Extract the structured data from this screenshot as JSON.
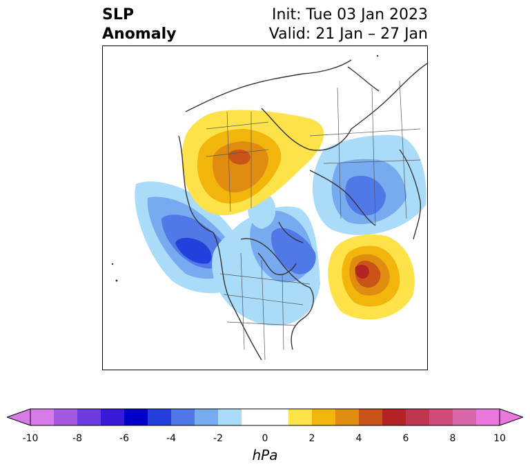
{
  "title": {
    "left_line1": "SLP",
    "left_line2": "Anomaly",
    "right_line1": "Init: Tue 03 Jan 2023",
    "right_line2": "Valid: 21 Jan – 27 Jan"
  },
  "colorbar": {
    "label": "hPa",
    "ticks": [
      "-10",
      "-8",
      "-6",
      "-4",
      "-2",
      "0",
      "2",
      "4",
      "6",
      "8",
      "10"
    ],
    "min": -10,
    "max": 10,
    "colors": [
      "#d67be8",
      "#a558e0",
      "#6e3be0",
      "#3a1ad8",
      "#0000c8",
      "#2340dc",
      "#5078e6",
      "#78aaf0",
      "#aadcfa",
      "#ffffff",
      "#ffffff",
      "#fde24a",
      "#f2b50c",
      "#e08c10",
      "#c85418",
      "#b42424",
      "#c03850",
      "#d04c7c",
      "#d866a8",
      "#ea78dc"
    ]
  },
  "map_features": {
    "high_pressure_anomalies": [
      "Alaska / Bering Strait region",
      "Central Atlantic"
    ],
    "low_pressure_anomalies": [
      "Northeast Pacific",
      "Canada / Northwest Atlantic",
      "Western Russia / Scandinavia"
    ]
  }
}
